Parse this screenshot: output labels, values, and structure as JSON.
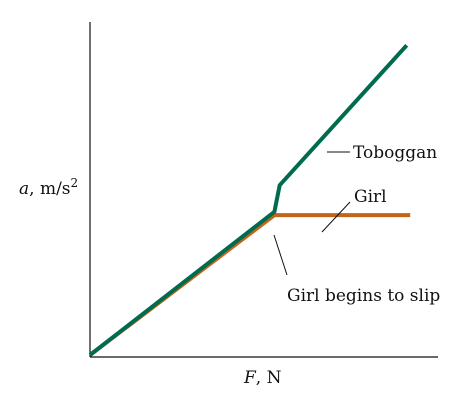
{
  "chart_data": {
    "type": "line",
    "xlabel_var": "F",
    "xlabel_unit": ", N",
    "ylabel_var": "a",
    "ylabel_unit": ", m/s",
    "ylabel_exp": "2",
    "x_ticks": false,
    "y_ticks": false,
    "grid": false,
    "legend": "none (series labeled directly with leader lines)",
    "xlim": [
      0,
      100
    ],
    "ylim": [
      0,
      100
    ],
    "series": [
      {
        "name": "Toboggan",
        "color": "#006b4f",
        "points": [
          [
            0,
            0
          ],
          [
            53,
            43
          ],
          [
            54.5,
            51
          ],
          [
            91,
            93
          ]
        ]
      },
      {
        "name": "Girl",
        "color": "#c2651a",
        "points": [
          [
            0,
            0
          ],
          [
            53,
            42
          ],
          [
            92,
            42
          ]
        ]
      }
    ],
    "annotations": [
      {
        "text": "Girl begins to slip",
        "points_to": [
          53,
          42
        ]
      }
    ]
  }
}
